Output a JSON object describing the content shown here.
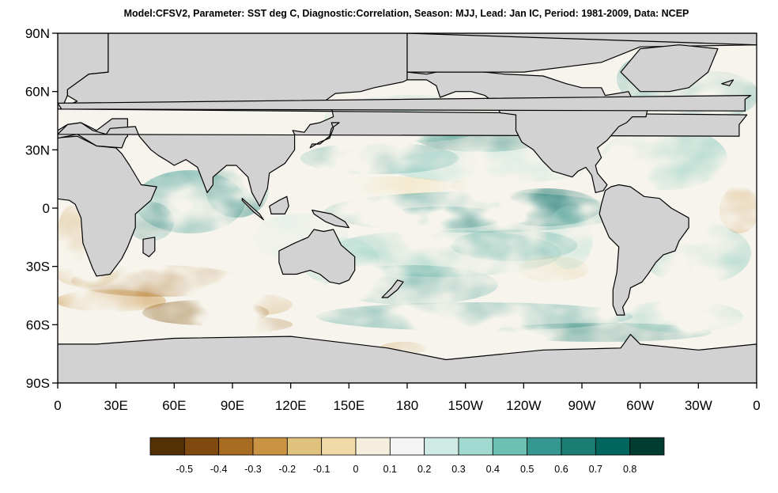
{
  "title": "Model:CFSV2, Parameter: SST deg C, Diagnostic:Correlation, Season:  MJJ, Lead:  Jan IC, Period: 1981-2009, Data: NCEP",
  "map": {
    "lat_ticks": [
      "90N",
      "60N",
      "30N",
      "0",
      "30S",
      "60S",
      "90S"
    ],
    "lon_ticks": [
      "0",
      "30E",
      "60E",
      "90E",
      "120E",
      "150E",
      "180",
      "150W",
      "120W",
      "90W",
      "60W",
      "30W",
      "0"
    ],
    "land_color": "#d2d2d2",
    "coast_color": "#000000"
  },
  "colorbar": {
    "labels": [
      "-0.5",
      "-0.4",
      "-0.3",
      "-0.2",
      "-0.1",
      "0",
      "0.1",
      "0.2",
      "0.3",
      "0.4",
      "0.5",
      "0.6",
      "0.7",
      "0.8"
    ],
    "colors": [
      "#543005",
      "#7f4a0f",
      "#a76b22",
      "#c99343",
      "#dfc27d",
      "#f0dba8",
      "#f6eedc",
      "#f5f5f5",
      "#d0ebe6",
      "#9fd9cf",
      "#6cc0b2",
      "#35978f",
      "#1b7d74",
      "#01665e",
      "#003c30"
    ]
  }
}
